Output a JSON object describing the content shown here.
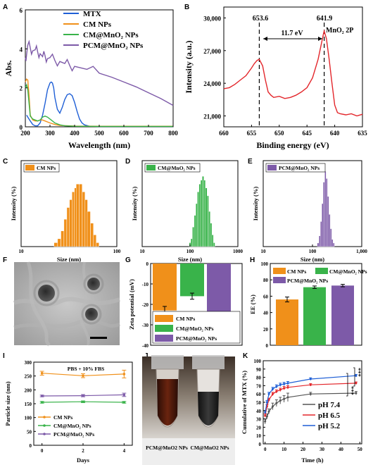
{
  "figure": {
    "panel_labels": [
      "A",
      "B",
      "C",
      "D",
      "E",
      "F",
      "G",
      "H",
      "I",
      "J",
      "K"
    ],
    "tem_photo": "TEM micrograph with scale bar",
    "tube_photo": "Two centrifuge tubes with dark brown dispersions",
    "tube_labels": [
      "PCM@MnO2 NPs",
      "CM@MnO2 NPs"
    ]
  },
  "colors": {
    "blue": "#1f5fd6",
    "orange": "#f0901a",
    "green": "#39b34a",
    "purple": "#7d5aa8",
    "red": "#e3262b",
    "gray": "#555555",
    "black": "#000000"
  },
  "chart_data": [
    {
      "panel": "A",
      "type": "line",
      "xlabel": "Wavelength (nm)",
      "ylabel": "Abs.",
      "xlim": [
        200,
        800
      ],
      "ylim": [
        0,
        6
      ],
      "xticks": [
        200,
        300,
        400,
        500,
        600,
        700,
        800
      ],
      "yticks": [
        0,
        2,
        4,
        6
      ],
      "legend_position": "top-right",
      "series": [
        {
          "name": "MTX",
          "color": "#1f5fd6",
          "x": [
            205,
            210,
            220,
            230,
            240,
            250,
            260,
            270,
            280,
            290,
            300,
            305,
            310,
            315,
            320,
            330,
            340,
            350,
            360,
            370,
            380,
            390,
            400,
            410,
            420,
            430,
            440,
            460,
            500,
            600,
            800
          ],
          "y": [
            0.6,
            0.5,
            0.3,
            0.12,
            0.05,
            0.05,
            0.2,
            0.6,
            1.2,
            1.9,
            2.25,
            2.3,
            2.25,
            2.0,
            1.5,
            0.9,
            0.7,
            1.0,
            1.4,
            1.65,
            1.7,
            1.6,
            1.25,
            0.8,
            0.4,
            0.2,
            0.1,
            0.03,
            0.02,
            0.02,
            0.02
          ]
        },
        {
          "name": "CM NPs",
          "color": "#f0901a",
          "x": [
            200,
            205,
            210,
            215,
            220,
            230,
            240,
            250,
            260,
            270,
            280,
            300,
            320,
            340,
            400,
            500,
            800
          ],
          "y": [
            2.3,
            2.45,
            2.4,
            1.6,
            0.6,
            0.35,
            0.3,
            0.3,
            0.35,
            0.35,
            0.3,
            0.2,
            0.12,
            0.07,
            0.04,
            0.03,
            0.03
          ]
        },
        {
          "name": "CM@MnO2 NPs",
          "color": "#39b34a",
          "x": [
            200,
            205,
            210,
            215,
            220,
            230,
            240,
            250,
            260,
            270,
            280,
            290,
            300,
            310,
            320,
            340,
            360,
            400,
            500,
            800
          ],
          "y": [
            2.0,
            2.15,
            1.9,
            1.2,
            0.55,
            0.4,
            0.35,
            0.3,
            0.35,
            0.5,
            0.55,
            0.5,
            0.4,
            0.3,
            0.2,
            0.1,
            0.05,
            0.03,
            0.02,
            0.02
          ]
        },
        {
          "name": "PCM@MnO2 NPs",
          "color": "#7d5aa8",
          "x": [
            200,
            205,
            210,
            220,
            230,
            240,
            250,
            260,
            270,
            280,
            290,
            300,
            320,
            340,
            360,
            380,
            400,
            450,
            500,
            550,
            600,
            650,
            700,
            750,
            800
          ],
          "y": [
            3.55,
            3.7,
            4.2,
            4.05,
            3.9,
            3.95,
            3.85,
            3.75,
            3.6,
            3.65,
            3.5,
            3.55,
            3.4,
            3.35,
            3.25,
            3.15,
            3.1,
            2.95,
            2.75,
            2.55,
            2.3,
            2.05,
            1.75,
            1.45,
            1.1
          ]
        }
      ]
    },
    {
      "panel": "B",
      "type": "line",
      "xlabel": "Binding energy (eV)",
      "ylabel": "Intensity (a.u.)",
      "xlim": [
        660,
        635
      ],
      "ylim": [
        20000,
        31000
      ],
      "reversed_x": true,
      "xticks": [
        660,
        655,
        650,
        645,
        640,
        635
      ],
      "yticks": [
        21000,
        24000,
        27000
      ],
      "ytick_labels": [
        "21,000",
        "24,000",
        "27,000",
        "30,000"
      ],
      "yticks_all": [
        21000,
        24000,
        27000,
        30000
      ],
      "annotations": [
        "653.6",
        "641.9",
        "11.7 eV",
        "MnO2 2P"
      ],
      "annotation_vlines": [
        653.6,
        641.9
      ],
      "series": [
        {
          "name": "",
          "color": "#e3262b",
          "x": [
            660,
            659,
            658,
            657,
            656,
            655,
            654.5,
            654,
            653.6,
            653,
            652.5,
            652,
            651.5,
            651,
            650,
            649,
            648,
            647,
            646,
            645,
            644,
            643,
            642.5,
            642,
            641.9,
            641.5,
            641,
            640.5,
            640,
            639.5,
            639,
            638,
            637,
            636,
            635
          ],
          "y": [
            23500,
            23600,
            23900,
            24300,
            24700,
            25400,
            25800,
            26100,
            26200,
            25600,
            24300,
            23200,
            22900,
            22700,
            22800,
            22600,
            22700,
            22900,
            23200,
            23600,
            24500,
            26200,
            27400,
            28600,
            28800,
            28100,
            26200,
            24000,
            22000,
            21300,
            21200,
            21100,
            21200,
            21000,
            21150
          ]
        }
      ]
    },
    {
      "panel": "C",
      "type": "bar",
      "xlabel": "Size (nm)",
      "ylabel": "Intensity (%)",
      "log_x": true,
      "xlim": [
        10,
        100
      ],
      "xticks": [
        10,
        100
      ],
      "xtick_labels": [
        "10",
        "100"
      ],
      "legend": "CM NPs",
      "color": "#f0901a",
      "x": [
        23,
        25,
        27,
        29,
        31,
        33,
        35,
        37,
        39,
        42,
        45,
        48,
        51,
        55,
        59,
        63
      ],
      "values": [
        1,
        2,
        4,
        7,
        10,
        12,
        14,
        15,
        16,
        16,
        14,
        12,
        9,
        6,
        3,
        1
      ]
    },
    {
      "panel": "D",
      "type": "bar",
      "xlabel": "Size (nm)",
      "ylabel": "Intensity (%)",
      "log_x": true,
      "xlim": [
        10,
        1000
      ],
      "xticks": [
        10,
        100,
        1000
      ],
      "xtick_labels": [
        "10",
        "100",
        "1000"
      ],
      "legend": "CM@MnO2 NPs",
      "color": "#39b34a",
      "x": [
        100,
        108,
        117,
        127,
        137,
        148,
        160,
        173,
        187,
        202,
        218,
        236,
        255,
        275,
        297,
        320
      ],
      "values": [
        1,
        2,
        5,
        8,
        11,
        14,
        16,
        17,
        18,
        17,
        15,
        13,
        9,
        6,
        3,
        1
      ]
    },
    {
      "panel": "E",
      "type": "bar",
      "xlabel": "Size (nm)",
      "ylabel": "Intensity (%)",
      "log_x": true,
      "xlim": [
        10,
        1000
      ],
      "xticks": [
        10,
        100,
        1000
      ],
      "xtick_labels": [
        "10",
        "100",
        "1,000"
      ],
      "legend": "PCM@MnO2 NPs",
      "color": "#7d5aa8",
      "x": [
        130,
        140,
        150,
        160,
        171,
        183,
        195,
        208,
        222,
        237,
        253,
        270
      ],
      "values": [
        1,
        3,
        7,
        12,
        18,
        21,
        19,
        14,
        9,
        5,
        2,
        1
      ]
    },
    {
      "panel": "G",
      "type": "bar",
      "ylabel": "Zeta potential (mV)",
      "ylim": [
        -40,
        0
      ],
      "yticks": [
        0,
        -10,
        -20,
        -30,
        -40
      ],
      "legend_position": "bottom",
      "categories": [
        "CM NPs",
        "CM@MnO2 NPs",
        "PCM@MnO2 NPs"
      ],
      "values": [
        -23,
        -16,
        -29
      ],
      "errors": [
        2,
        1.5,
        2
      ],
      "colors": [
        "#f0901a",
        "#39b34a",
        "#7d5aa8"
      ]
    },
    {
      "panel": "H",
      "type": "bar",
      "ylabel": "EE (%)",
      "ylim": [
        0,
        100
      ],
      "yticks": [
        0,
        20,
        40,
        60,
        80,
        100
      ],
      "legend_position": "top",
      "categories": [
        "CM NPs",
        "CM@MnO2 NPs",
        "PCM@MnO2 NPs"
      ],
      "values": [
        56,
        71,
        73
      ],
      "errors": [
        3,
        1.5,
        1.5
      ],
      "colors": [
        "#f0901a",
        "#39b34a",
        "#7d5aa8"
      ]
    },
    {
      "panel": "I",
      "type": "line",
      "xlabel": "Days",
      "ylabel": "Particle size (nm)",
      "xlim": [
        -0.4,
        4.4
      ],
      "ylim": [
        0,
        300
      ],
      "xticks": [
        0,
        2,
        4
      ],
      "yticks": [
        0,
        50,
        100,
        150,
        200,
        250,
        300
      ],
      "annotation": "PBS + 10% FBS",
      "legend_position": "bottom-left",
      "series": [
        {
          "name": "CM NPs",
          "color": "#f0901a",
          "x": [
            0,
            2,
            4
          ],
          "y": [
            260,
            251,
            257
          ],
          "err": [
            7,
            7,
            14
          ]
        },
        {
          "name": "CM@MnO2 NPs",
          "color": "#39b34a",
          "x": [
            0,
            2,
            4
          ],
          "y": [
            155,
            157,
            155
          ],
          "err": [
            3,
            3,
            3
          ]
        },
        {
          "name": "PCM@MnO2 NPs",
          "color": "#7d5aa8",
          "x": [
            0,
            2,
            4
          ],
          "y": [
            178,
            179,
            182
          ],
          "err": [
            3,
            4,
            6
          ]
        }
      ]
    },
    {
      "panel": "K",
      "type": "line",
      "xlabel": "Time (h)",
      "ylabel": "Cumulative of MTX (%)",
      "xlim": [
        -1,
        51
      ],
      "ylim": [
        0,
        100
      ],
      "xticks": [
        0,
        10,
        20,
        30,
        40,
        50
      ],
      "yticks": [
        0,
        10,
        20,
        30,
        40,
        50,
        60,
        70,
        80,
        90,
        100
      ],
      "legend_position": "bottom-right",
      "significance": [
        "***",
        "***"
      ],
      "series": [
        {
          "name": "pH 7.4",
          "color": "#555555",
          "x": [
            0,
            1,
            2,
            4,
            6,
            8,
            10,
            12,
            24,
            48
          ],
          "y": [
            27,
            33,
            39,
            45,
            49,
            52,
            54,
            56,
            60,
            61
          ],
          "err": [
            3,
            3,
            3,
            4,
            4,
            4,
            4,
            5,
            2,
            2
          ]
        },
        {
          "name": "pH 6.5",
          "color": "#e3262b",
          "x": [
            0,
            1,
            2,
            4,
            6,
            8,
            10,
            12,
            24,
            48
          ],
          "y": [
            34,
            45,
            53,
            60,
            63,
            65,
            67,
            68,
            71,
            73
          ],
          "err": [
            2,
            2,
            2,
            2,
            2,
            2,
            2,
            2,
            1.5,
            1.5
          ]
        },
        {
          "name": "pH 5.2",
          "color": "#1f5fd6",
          "x": [
            0,
            1,
            2,
            4,
            6,
            8,
            10,
            12,
            24,
            48
          ],
          "y": [
            38,
            50,
            60,
            66,
            69,
            71,
            72,
            73,
            78,
            82
          ],
          "err": [
            2,
            2,
            2,
            2,
            2,
            2,
            2,
            2,
            1.5,
            1.5
          ]
        }
      ]
    }
  ]
}
